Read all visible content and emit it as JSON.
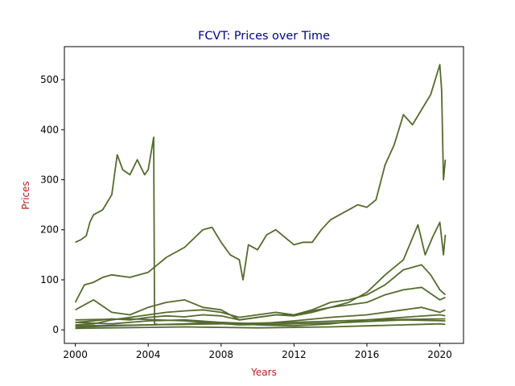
{
  "colors": {
    "series": "#556b2f",
    "title": "#00008b",
    "axis_label": "#b22222",
    "axes": "#000000",
    "background": "#ffffff"
  },
  "chart_data": {
    "type": "line",
    "title": "FCVT: Prices over Time",
    "xlabel": "Years",
    "ylabel": "Prices",
    "xlim": [
      1999.4,
      2021.3
    ],
    "ylim": [
      -27,
      566
    ],
    "x_ticks": [
      2000,
      2004,
      2008,
      2012,
      2016,
      2020
    ],
    "y_ticks": [
      0,
      100,
      200,
      300,
      400,
      500
    ],
    "grid": false,
    "legend": "none",
    "x_units": "year",
    "series": [
      {
        "x": [
          2000.0,
          2000.3,
          2000.6,
          2000.8,
          2001.0,
          2001.5,
          2002.0,
          2002.3,
          2002.6,
          2003.0,
          2003.4,
          2003.8,
          2004.0,
          2004.3,
          2004.35,
          2004.5
        ],
        "values": [
          175,
          180,
          188,
          215,
          230,
          240,
          270,
          350,
          320,
          310,
          340,
          310,
          320,
          385,
          10,
          12
        ]
      },
      {
        "x": [
          2000.0,
          2000.5,
          2001.0,
          2001.5,
          2002.0,
          2003.0,
          2004.0,
          2004.5,
          2005.0,
          2006.0,
          2007.0,
          2007.5,
          2008.0,
          2008.5,
          2009.0,
          2009.2,
          2009.5,
          2010.0,
          2010.5,
          2011.0,
          2011.5,
          2012.0,
          2012.5,
          2013.0,
          2013.5,
          2014.0,
          2014.5,
          2015.0,
          2015.5,
          2016.0,
          2016.5,
          2017.0,
          2017.5,
          2018.0,
          2018.5,
          2019.0,
          2019.5,
          2020.0,
          2020.1,
          2020.2,
          2020.3
        ],
        "values": [
          55,
          90,
          95,
          105,
          110,
          105,
          115,
          130,
          145,
          165,
          200,
          205,
          175,
          150,
          140,
          100,
          170,
          160,
          190,
          200,
          185,
          170,
          175,
          175,
          200,
          220,
          230,
          240,
          250,
          245,
          260,
          330,
          370,
          430,
          410,
          440,
          470,
          530,
          480,
          300,
          340
        ]
      },
      {
        "x": [
          2000.0,
          2001.0,
          2002.0,
          2003.0,
          2004.0,
          2005.0,
          2006.0,
          2007.0,
          2008.0,
          2009.0,
          2010.0,
          2011.0,
          2012.0,
          2013.0,
          2014.0,
          2015.0,
          2016.0,
          2017.0,
          2018.0,
          2018.8,
          2019.2,
          2019.6,
          2020.0,
          2020.2,
          2020.3
        ],
        "values": [
          15,
          18,
          22,
          20,
          25,
          28,
          26,
          30,
          28,
          20,
          25,
          30,
          28,
          35,
          45,
          55,
          75,
          110,
          140,
          210,
          150,
          185,
          215,
          150,
          190
        ]
      },
      {
        "x": [
          2000.0,
          2001.0,
          2002.0,
          2003.0,
          2004.0,
          2005.0,
          2006.0,
          2007.0,
          2008.0,
          2009.0,
          2010.0,
          2011.0,
          2012.0,
          2013.0,
          2014.0,
          2015.0,
          2016.0,
          2017.0,
          2018.0,
          2019.0,
          2019.5,
          2020.0,
          2020.3
        ],
        "values": [
          40,
          60,
          35,
          30,
          45,
          55,
          60,
          45,
          40,
          20,
          25,
          30,
          30,
          40,
          55,
          60,
          70,
          90,
          120,
          130,
          110,
          80,
          70
        ]
      },
      {
        "x": [
          2000.0,
          2001.0,
          2002.0,
          2003.0,
          2004.0,
          2005.0,
          2006.0,
          2007.0,
          2008.0,
          2009.0,
          2010.0,
          2011.0,
          2012.0,
          2013.0,
          2014.0,
          2015.0,
          2016.0,
          2017.0,
          2018.0,
          2019.0,
          2020.0,
          2020.3
        ],
        "values": [
          10,
          12,
          20,
          25,
          30,
          35,
          38,
          40,
          35,
          25,
          30,
          35,
          30,
          38,
          45,
          50,
          55,
          70,
          80,
          85,
          60,
          65
        ]
      },
      {
        "x": [
          2000.0,
          2002.0,
          2004.0,
          2006.0,
          2008.0,
          2010.0,
          2012.0,
          2014.0,
          2016.0,
          2018.0,
          2019.0,
          2020.0,
          2020.3
        ],
        "values": [
          5,
          8,
          10,
          12,
          15,
          12,
          18,
          25,
          30,
          40,
          45,
          35,
          40
        ]
      },
      {
        "x": [
          2000.0,
          2002.0,
          2004.0,
          2006.0,
          2008.0,
          2010.0,
          2012.0,
          2014.0,
          2016.0,
          2018.0,
          2020.0,
          2020.3
        ],
        "values": [
          15,
          12,
          18,
          20,
          15,
          10,
          8,
          12,
          20,
          25,
          30,
          28
        ]
      },
      {
        "x": [
          2000.0,
          2002.0,
          2004.0,
          2006.0,
          2008.0,
          2010.0,
          2012.0,
          2014.0,
          2016.0,
          2018.0,
          2020.0,
          2020.3
        ],
        "values": [
          3,
          4,
          5,
          6,
          5,
          4,
          5,
          6,
          8,
          10,
          12,
          11
        ]
      },
      {
        "x": [
          2000.0,
          2003.0,
          2006.0,
          2009.0,
          2012.0,
          2015.0,
          2018.0,
          2020.3
        ],
        "values": [
          20,
          22,
          18,
          10,
          12,
          15,
          20,
          18
        ]
      },
      {
        "x": [
          2000.0,
          2004.0,
          2008.0,
          2012.0,
          2016.0,
          2020.3
        ],
        "values": [
          8,
          10,
          12,
          15,
          20,
          22
        ]
      }
    ]
  }
}
